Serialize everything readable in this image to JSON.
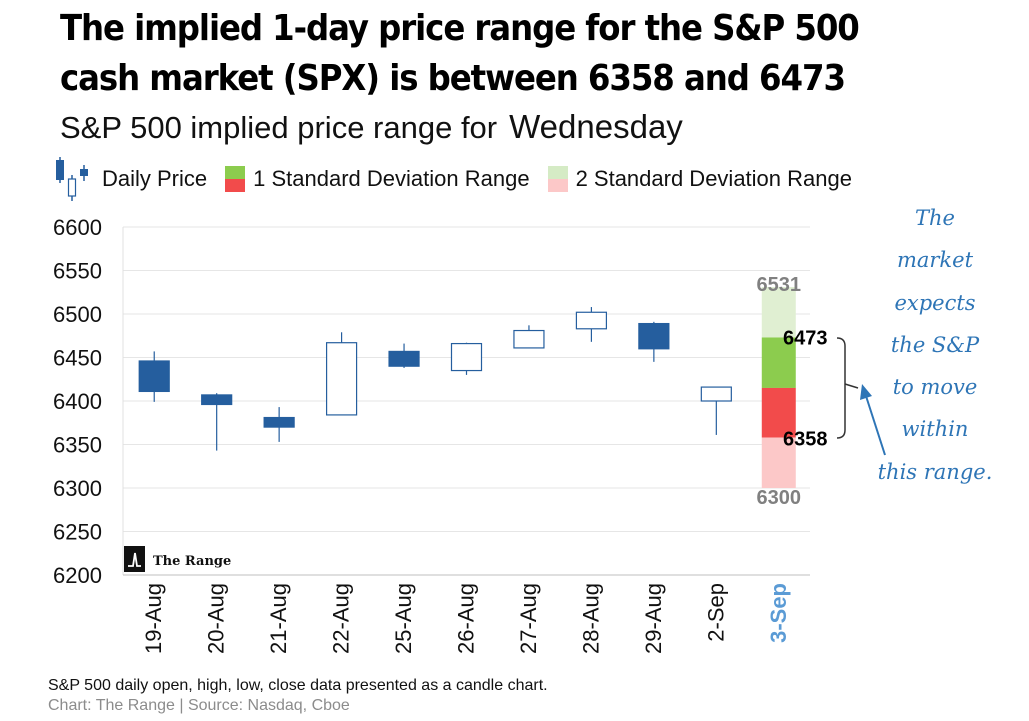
{
  "header": {
    "title": "The implied 1-day price range for the S&P 500 cash market (SPX) is between 6358 and 6473",
    "subtitle": "S&P 500 implied price range for",
    "subtitle_day": "Wednesday"
  },
  "legend": {
    "daily_price": "Daily Price",
    "one_sd": "1 Standard Deviation Range",
    "two_sd": "2 Standard Deviation Range"
  },
  "annotation": {
    "lines": [
      "The",
      "market",
      "expects",
      "the S&P",
      "to move",
      "within",
      "this range."
    ]
  },
  "watermark": {
    "text": "The Range"
  },
  "footer": {
    "note": "S&P 500 daily open, high, low, close data presented as a candle chart.",
    "source": "Chart: The Range | Source: Nasdaq, Cboe"
  },
  "colors": {
    "down_candle": "#255e9e",
    "up_candle_border": "#255e9e",
    "one_sd_up": "#8ccc4e",
    "one_sd_down": "#f24b4b",
    "two_sd_up": "#e0efd2",
    "two_sd_down": "#fcc8c8",
    "forecast_label": "#5b9bd5",
    "annotation": "#2e75b6",
    "outer_label": "#808080"
  },
  "chart_data": {
    "type": "candlestick",
    "y_ticks": [
      6600,
      6550,
      6500,
      6450,
      6400,
      6350,
      6300,
      6250,
      6200
    ],
    "ylim": [
      6200,
      6600
    ],
    "categories": [
      "19-Aug",
      "20-Aug",
      "21-Aug",
      "22-Aug",
      "25-Aug",
      "26-Aug",
      "27-Aug",
      "28-Aug",
      "29-Aug",
      "2-Sep",
      "3-Sep"
    ],
    "candles": [
      {
        "date": "19-Aug",
        "open": 6446,
        "high": 6457,
        "low": 6399,
        "close": 6411
      },
      {
        "date": "20-Aug",
        "open": 6407,
        "high": 6409,
        "low": 6343,
        "close": 6396
      },
      {
        "date": "21-Aug",
        "open": 6381,
        "high": 6393,
        "low": 6353,
        "close": 6370
      },
      {
        "date": "22-Aug",
        "open": 6384,
        "high": 6479,
        "low": 6384,
        "close": 6467
      },
      {
        "date": "25-Aug",
        "open": 6457,
        "high": 6466,
        "low": 6438,
        "close": 6440
      },
      {
        "date": "26-Aug",
        "open": 6435,
        "high": 6467,
        "low": 6430,
        "close": 6466
      },
      {
        "date": "27-Aug",
        "open": 6461,
        "high": 6487,
        "low": 6461,
        "close": 6481
      },
      {
        "date": "28-Aug",
        "open": 6483,
        "high": 6508,
        "low": 6468,
        "close": 6502
      },
      {
        "date": "29-Aug",
        "open": 6489,
        "high": 6491,
        "low": 6445,
        "close": 6460
      },
      {
        "date": "2-Sep",
        "open": 6400,
        "high": 6416,
        "low": 6361,
        "close": 6416
      }
    ],
    "forecast": {
      "date": "3-Sep",
      "two_sd_high": 6531,
      "one_sd_high": 6473,
      "mid": 6415,
      "one_sd_low": 6358,
      "two_sd_low": 6300
    }
  }
}
